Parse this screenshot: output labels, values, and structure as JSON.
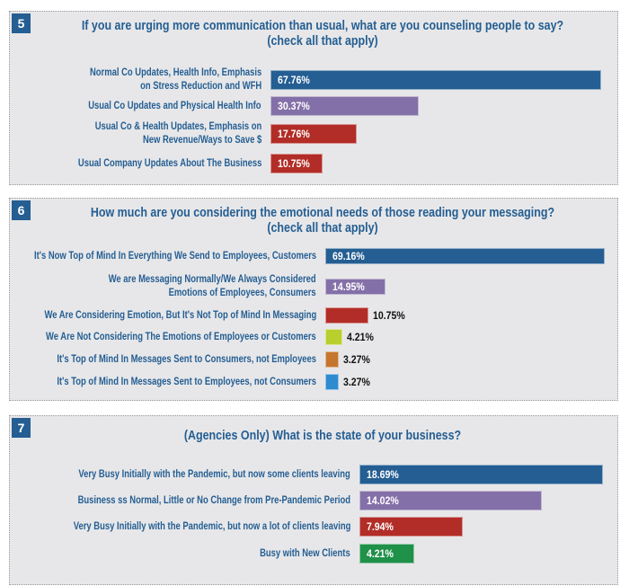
{
  "chart_data": [
    {
      "type": "bar",
      "orientation": "horizontal",
      "number": "5",
      "title": [
        "If you are urging more communication than usual, what are you counseling people to say?",
        "(check all that apply)"
      ],
      "categories": [
        [
          "Normal Co Updates, Health Info, Emphasis",
          "on Stress Reduction and WFH"
        ],
        [
          "Usual Co Updates and Physical Health Info"
        ],
        [
          "Usual Co & Health Updates, Emphasis on",
          "New Revenue/Ways to Save $"
        ],
        [
          "Usual Company Updates About The Business"
        ]
      ],
      "values": [
        67.76,
        30.37,
        17.76,
        10.75
      ],
      "value_labels": [
        "67.76%",
        "30.37%",
        "17.76%",
        "10.75%"
      ],
      "colors": [
        "#245e92",
        "#8470a8",
        "#b22d27",
        "#b22d27"
      ],
      "unit": "%",
      "grid": false
    },
    {
      "type": "bar",
      "orientation": "horizontal",
      "number": "6",
      "title": [
        "How much are you considering the emotional needs of those reading your messaging?",
        "(check all that apply)"
      ],
      "categories": [
        [
          "It's Now Top of Mind In Everything We Send to Employees, Customers"
        ],
        [
          "We are Messaging Normally/We Always Considered",
          "Emotions of Employees, Consumers"
        ],
        [
          "We Are Considering Emotion, But It's Not Top of Mind In Messaging"
        ],
        [
          "We Are Not Considering The Emotions of Employees or Customers"
        ],
        [
          "It's Top of Mind In Messages Sent to Consumers, not Employees"
        ],
        [
          "It's Top of Mind In Messages Sent to Employees, not Consumers"
        ]
      ],
      "values": [
        69.16,
        14.95,
        10.75,
        4.21,
        3.27,
        3.27
      ],
      "value_labels": [
        "69.16%",
        "14.95%",
        "10.75%",
        "4.21%",
        "3.27%",
        "3.27%"
      ],
      "colors": [
        "#245e92",
        "#8470a8",
        "#b22d27",
        "#b8cf2e",
        "#c4762f",
        "#2e8bd0"
      ],
      "unit": "%",
      "grid": false
    },
    {
      "type": "bar",
      "orientation": "horizontal",
      "number": "7",
      "title": [
        "(Agencies Only) What is the state of your business?"
      ],
      "categories": [
        [
          "Very Busy Initially with the Pandemic, but now some clients leaving"
        ],
        [
          "Business ss Normal, Little or No Change from Pre-Pandemic Period"
        ],
        [
          "Very Busy Initially with the Pandemic, but now a lot of clients leaving"
        ],
        [
          "Busy with New Clients"
        ]
      ],
      "values": [
        18.69,
        14.02,
        7.94,
        4.21
      ],
      "value_labels": [
        "18.69%",
        "14.02%",
        "7.94%",
        "4.21%"
      ],
      "colors": [
        "#245e92",
        "#8470a8",
        "#b22d27",
        "#1f9148"
      ],
      "unit": "%",
      "grid": false
    }
  ]
}
